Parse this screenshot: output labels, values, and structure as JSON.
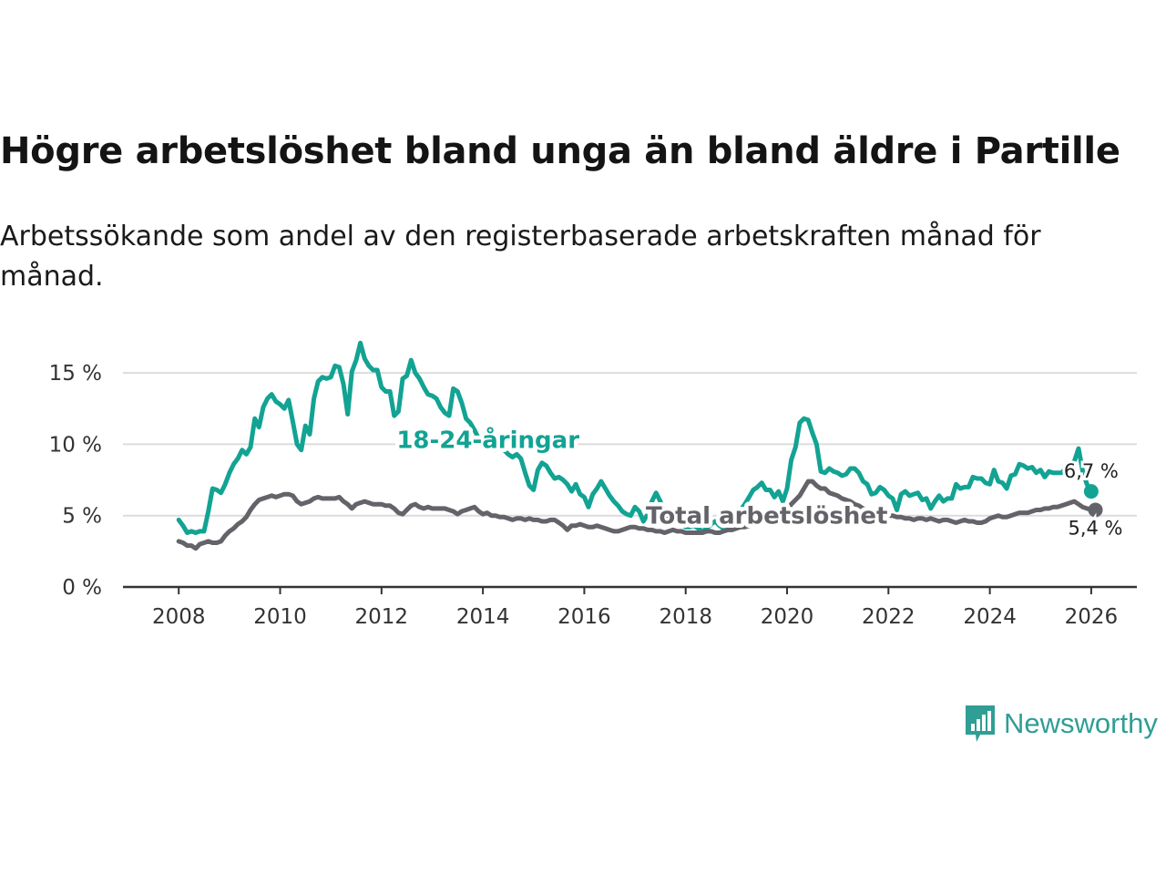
{
  "title": "Högre arbetslöshet bland unga än bland äldre i Partille",
  "subtitle": "Arbetssökande som andel av den registerbaserade arbetskraften månad för månad.",
  "brand": {
    "name": "Newsworthy",
    "color": "#2f9e95"
  },
  "chart_data": {
    "type": "line",
    "x_start": 2008.0,
    "x_step": 0.08333,
    "xlim": [
      2006.9,
      2026.9
    ],
    "ylim": [
      0,
      17.5
    ],
    "x_ticks": [
      2008,
      2010,
      2012,
      2014,
      2016,
      2018,
      2020,
      2022,
      2024,
      2026
    ],
    "x_tick_labels": [
      "2008",
      "2010",
      "2012",
      "2014",
      "2016",
      "2018",
      "2020",
      "2022",
      "2024",
      "2026"
    ],
    "y_ticks": [
      0,
      5,
      10,
      15
    ],
    "y_tick_labels": [
      "0 %",
      "5 %",
      "10 %",
      "15 %"
    ],
    "gridlines": true,
    "series": [
      {
        "name": "18-24-åringar",
        "color": "#12a393",
        "end_label": "6,7 %",
        "values": [
          4.7,
          4.3,
          3.8,
          3.9,
          3.8,
          3.9,
          3.9,
          5.3,
          6.9,
          6.8,
          6.6,
          7.2,
          8.0,
          8.6,
          9.0,
          9.6,
          9.3,
          9.8,
          11.8,
          11.2,
          12.6,
          13.2,
          13.5,
          13.0,
          12.8,
          12.5,
          13.1,
          11.6,
          10.0,
          9.6,
          11.3,
          10.7,
          13.2,
          14.4,
          14.7,
          14.6,
          14.7,
          15.5,
          15.4,
          14.2,
          12.1,
          15.1,
          15.9,
          17.1,
          16.0,
          15.5,
          15.2,
          15.2,
          14.0,
          13.7,
          13.7,
          12.0,
          12.3,
          14.6,
          14.8,
          15.9,
          15.0,
          14.6,
          14.0,
          13.5,
          13.4,
          13.2,
          12.6,
          12.2,
          12.0,
          13.9,
          13.7,
          12.9,
          11.8,
          11.5,
          11.0,
          10.4,
          10.3,
          10.1,
          9.9,
          9.6,
          9.9,
          9.6,
          9.3,
          9.1,
          9.3,
          9.0,
          8.0,
          7.1,
          6.8,
          8.2,
          8.7,
          8.5,
          8.0,
          7.6,
          7.7,
          7.5,
          7.2,
          6.7,
          7.2,
          6.5,
          6.3,
          5.6,
          6.5,
          6.9,
          7.4,
          6.9,
          6.4,
          6.0,
          5.7,
          5.3,
          5.1,
          5.0,
          5.6,
          5.3,
          4.6,
          5.1,
          6.0,
          6.6,
          6.0,
          5.3,
          4.9,
          4.6,
          4.5,
          4.4,
          4.2,
          4.2,
          4.3,
          4.1,
          3.9,
          4.1,
          4.4,
          4.6,
          4.3,
          4.1,
          4.2,
          4.6,
          4.9,
          5.4,
          5.8,
          6.3,
          6.8,
          7.0,
          7.3,
          6.8,
          6.8,
          6.3,
          6.7,
          6.0,
          6.9,
          8.9,
          9.8,
          11.5,
          11.8,
          11.7,
          10.8,
          10.0,
          8.1,
          8.0,
          8.3,
          8.1,
          8.0,
          7.8,
          7.9,
          8.3,
          8.3,
          8.0,
          7.4,
          7.2,
          6.5,
          6.6,
          7.0,
          6.8,
          6.4,
          6.2,
          5.4,
          6.5,
          6.7,
          6.4,
          6.5,
          6.6,
          6.1,
          6.2,
          5.5,
          6.0,
          6.4,
          6.0,
          6.2,
          6.2,
          7.2,
          6.9,
          7.0,
          7.0,
          7.7,
          7.6,
          7.6,
          7.3,
          7.2,
          8.2,
          7.4,
          7.3,
          6.9,
          7.8,
          7.9,
          8.6,
          8.5,
          8.3,
          8.4,
          8.0,
          8.2,
          7.7,
          8.1,
          8.0,
          8.0,
          8.0,
          8.3,
          8.4,
          8.8,
          9.7,
          8.1,
          7.2,
          6.7
        ]
      },
      {
        "name": "Total arbetslöshet",
        "color": "#636369",
        "end_label": "5,4 %",
        "values": [
          3.2,
          3.1,
          2.9,
          2.9,
          2.7,
          3.0,
          3.1,
          3.2,
          3.1,
          3.1,
          3.2,
          3.6,
          3.9,
          4.1,
          4.4,
          4.6,
          4.9,
          5.4,
          5.8,
          6.1,
          6.2,
          6.3,
          6.4,
          6.3,
          6.4,
          6.5,
          6.5,
          6.4,
          6.0,
          5.8,
          5.9,
          6.0,
          6.2,
          6.3,
          6.2,
          6.2,
          6.2,
          6.2,
          6.3,
          6.0,
          5.8,
          5.5,
          5.8,
          5.9,
          6.0,
          5.9,
          5.8,
          5.8,
          5.8,
          5.7,
          5.7,
          5.5,
          5.2,
          5.1,
          5.4,
          5.7,
          5.8,
          5.6,
          5.5,
          5.6,
          5.5,
          5.5,
          5.5,
          5.5,
          5.4,
          5.3,
          5.1,
          5.3,
          5.4,
          5.5,
          5.6,
          5.3,
          5.1,
          5.2,
          5.0,
          5.0,
          4.9,
          4.9,
          4.8,
          4.7,
          4.8,
          4.8,
          4.7,
          4.8,
          4.7,
          4.7,
          4.6,
          4.6,
          4.7,
          4.7,
          4.5,
          4.3,
          4.0,
          4.3,
          4.3,
          4.4,
          4.3,
          4.2,
          4.2,
          4.3,
          4.2,
          4.1,
          4.0,
          3.9,
          3.9,
          4.0,
          4.1,
          4.2,
          4.2,
          4.1,
          4.1,
          4.0,
          4.0,
          3.9,
          3.9,
          3.8,
          3.9,
          4.0,
          3.9,
          3.9,
          3.8,
          3.8,
          3.8,
          3.8,
          3.8,
          3.9,
          3.9,
          3.8,
          3.8,
          3.9,
          4.0,
          4.0,
          4.1,
          4.2,
          4.2,
          4.3,
          4.4,
          4.5,
          4.6,
          4.6,
          4.7,
          4.8,
          4.9,
          5.0,
          5.3,
          5.8,
          6.1,
          6.4,
          6.9,
          7.4,
          7.4,
          7.1,
          6.9,
          6.9,
          6.6,
          6.5,
          6.4,
          6.2,
          6.1,
          6.0,
          5.8,
          5.7,
          5.5,
          5.4,
          5.3,
          5.2,
          5.1,
          5.1,
          5.0,
          5.0,
          4.9,
          4.9,
          4.8,
          4.8,
          4.7,
          4.8,
          4.8,
          4.7,
          4.8,
          4.7,
          4.6,
          4.7,
          4.7,
          4.6,
          4.5,
          4.6,
          4.7,
          4.6,
          4.6,
          4.5,
          4.5,
          4.6,
          4.8,
          4.9,
          5.0,
          4.9,
          4.9,
          5.0,
          5.1,
          5.2,
          5.2,
          5.2,
          5.3,
          5.4,
          5.4,
          5.5,
          5.5,
          5.6,
          5.6,
          5.7,
          5.8,
          5.9,
          6.0,
          5.8,
          5.6,
          5.5,
          5.4,
          5.4
        ]
      }
    ],
    "annotations": [
      {
        "series": 0,
        "text": "18-24-åringar",
        "x": 2014.1,
        "y": 10.3
      },
      {
        "series": 1,
        "text": "Total arbetslöshet",
        "x": 2019.6,
        "y": 5.0
      }
    ]
  }
}
